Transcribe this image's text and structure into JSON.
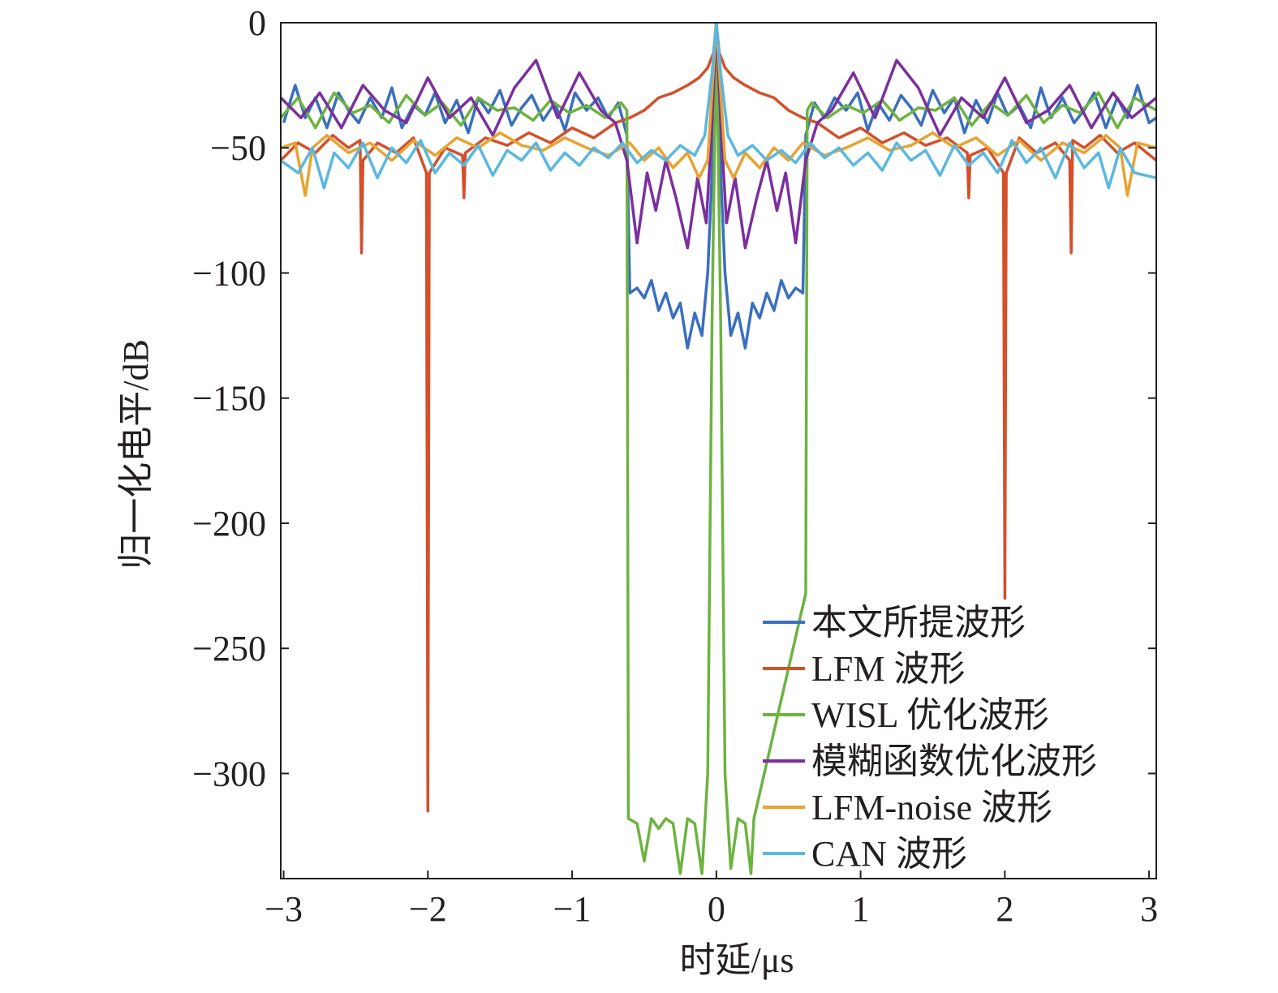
{
  "chart_data": {
    "type": "line",
    "title": "",
    "xlabel": "时延/μs",
    "ylabel": "归一化电平/dB",
    "xlim": [
      -3.02,
      3.05
    ],
    "ylim": [
      -342,
      0
    ],
    "x_ticks": [
      -3,
      -2,
      -1,
      0,
      1,
      2,
      3
    ],
    "x_tick_labels": [
      "−3",
      "−2",
      "−1",
      "0",
      "1",
      "2",
      "3"
    ],
    "y_ticks": [
      0,
      -50,
      -100,
      -150,
      -200,
      -250,
      -300
    ],
    "y_tick_labels": [
      "0",
      "−50",
      "−100",
      "−150",
      "−200",
      "−250",
      "−300"
    ],
    "grid": false,
    "legend_position": "bottom-right",
    "series": [
      {
        "name": "本文所提波形",
        "color": "#3a6fbf",
        "x": [
          -3.0,
          -2.92,
          -2.85,
          -2.78,
          -2.7,
          -2.62,
          -2.55,
          -2.48,
          -2.4,
          -2.32,
          -2.25,
          -2.18,
          -2.1,
          -2.02,
          -1.95,
          -1.88,
          -1.8,
          -1.72,
          -1.65,
          -1.58,
          -1.5,
          -1.42,
          -1.35,
          -1.28,
          -1.2,
          -1.12,
          -1.05,
          -0.98,
          -0.9,
          -0.82,
          -0.75,
          -0.68,
          -0.62,
          -0.6,
          -0.55,
          -0.5,
          -0.45,
          -0.4,
          -0.35,
          -0.3,
          -0.25,
          -0.2,
          -0.15,
          -0.1,
          -0.06,
          -0.03,
          0.0,
          0.03,
          0.06,
          0.1,
          0.15,
          0.2,
          0.25,
          0.3,
          0.35,
          0.4,
          0.45,
          0.5,
          0.55,
          0.6,
          0.62,
          0.68,
          0.75,
          0.82,
          0.9,
          0.98,
          1.05,
          1.12,
          1.2,
          1.28,
          1.35,
          1.42,
          1.5,
          1.58,
          1.65,
          1.72,
          1.8,
          1.88,
          1.95,
          2.02,
          2.1,
          2.18,
          2.25,
          2.32,
          2.4,
          2.48,
          2.55,
          2.62,
          2.7,
          2.78,
          2.85,
          2.92,
          3.0,
          3.05
        ],
        "y": [
          -40,
          -25,
          -38,
          -30,
          -42,
          -28,
          -35,
          -40,
          -30,
          -38,
          -26,
          -42,
          -33,
          -37,
          -28,
          -40,
          -31,
          -44,
          -30,
          -36,
          -27,
          -41,
          -34,
          -29,
          -39,
          -32,
          -43,
          -28,
          -35,
          -30,
          -38,
          -32,
          -45,
          -108,
          -106,
          -110,
          -103,
          -115,
          -108,
          -118,
          -112,
          -130,
          -116,
          -125,
          -100,
          -60,
          0,
          -60,
          -100,
          -125,
          -116,
          -130,
          -112,
          -118,
          -108,
          -115,
          -103,
          -110,
          -106,
          -108,
          -45,
          -32,
          -38,
          -30,
          -35,
          -28,
          -43,
          -32,
          -39,
          -29,
          -34,
          -41,
          -27,
          -36,
          -30,
          -44,
          -31,
          -40,
          -28,
          -37,
          -33,
          -42,
          -26,
          -38,
          -30,
          -40,
          -35,
          -28,
          -42,
          -30,
          -38,
          -25,
          -40,
          -38
        ]
      },
      {
        "name": "LFM 波形",
        "color": "#d4502a",
        "x": [
          -3.02,
          -2.9,
          -2.78,
          -2.66,
          -2.55,
          -2.47,
          -2.46,
          -2.45,
          -2.35,
          -2.22,
          -2.1,
          -2.01,
          -2.0,
          -1.99,
          -1.88,
          -1.76,
          -1.75,
          -1.74,
          -1.6,
          -1.45,
          -1.3,
          -1.15,
          -1.0,
          -0.85,
          -0.7,
          -0.6,
          -0.5,
          -0.4,
          -0.3,
          -0.2,
          -0.12,
          -0.06,
          -0.02,
          0.0,
          0.02,
          0.06,
          0.12,
          0.2,
          0.3,
          0.4,
          0.5,
          0.6,
          0.7,
          0.85,
          1.0,
          1.15,
          1.3,
          1.45,
          1.6,
          1.74,
          1.75,
          1.76,
          1.88,
          1.99,
          2.0,
          2.01,
          2.1,
          2.22,
          2.35,
          2.45,
          2.46,
          2.47,
          2.55,
          2.66,
          2.78,
          2.9,
          3.05
        ],
        "y": [
          -55,
          -48,
          -52,
          -45,
          -50,
          -47,
          -92,
          -55,
          -48,
          -52,
          -46,
          -60,
          -315,
          -60,
          -50,
          -53,
          -70,
          -52,
          -46,
          -49,
          -44,
          -48,
          -42,
          -46,
          -40,
          -38,
          -35,
          -30,
          -28,
          -25,
          -22,
          -18,
          -12,
          0,
          -12,
          -18,
          -22,
          -25,
          -28,
          -30,
          -35,
          -38,
          -40,
          -46,
          -42,
          -48,
          -44,
          -49,
          -46,
          -52,
          -70,
          -53,
          -50,
          -60,
          -230,
          -60,
          -46,
          -52,
          -48,
          -55,
          -92,
          -47,
          -50,
          -45,
          -52,
          -48,
          -55
        ]
      },
      {
        "name": "WISL 优化波形",
        "color": "#6db33f",
        "x": [
          -3.02,
          -2.9,
          -2.78,
          -2.65,
          -2.52,
          -2.4,
          -2.27,
          -2.15,
          -2.02,
          -1.9,
          -1.77,
          -1.65,
          -1.52,
          -1.4,
          -1.27,
          -1.15,
          -1.02,
          -0.9,
          -0.77,
          -0.66,
          -0.62,
          -0.61,
          -0.55,
          -0.5,
          -0.45,
          -0.4,
          -0.35,
          -0.3,
          -0.25,
          -0.2,
          -0.15,
          -0.1,
          -0.06,
          -0.03,
          0.0,
          0.03,
          0.06,
          0.1,
          0.15,
          0.2,
          0.24,
          0.26,
          0.62,
          0.63,
          0.66,
          0.77,
          0.9,
          1.02,
          1.15,
          1.27,
          1.4,
          1.52,
          1.65,
          1.77,
          1.9,
          2.02,
          2.15,
          2.27,
          2.4,
          2.52,
          2.65,
          2.78,
          2.9,
          3.05
        ],
        "y": [
          -38,
          -30,
          -42,
          -28,
          -36,
          -33,
          -40,
          -29,
          -37,
          -32,
          -41,
          -30,
          -35,
          -34,
          -39,
          -31,
          -36,
          -33,
          -38,
          -32,
          -35,
          -318,
          -320,
          -335,
          -318,
          -322,
          -318,
          -320,
          -340,
          -318,
          -320,
          -340,
          -300,
          -120,
          0,
          -120,
          -300,
          -338,
          -318,
          -320,
          -340,
          -318,
          -228,
          -35,
          -32,
          -38,
          -33,
          -36,
          -31,
          -39,
          -34,
          -35,
          -30,
          -41,
          -32,
          -37,
          -29,
          -40,
          -33,
          -36,
          -28,
          -42,
          -30,
          -35
        ]
      },
      {
        "name": "模糊函数优化波形",
        "color": "#7b2f9e",
        "x": [
          -3.02,
          -2.88,
          -2.75,
          -2.6,
          -2.45,
          -2.3,
          -2.15,
          -2.0,
          -1.85,
          -1.7,
          -1.55,
          -1.4,
          -1.25,
          -1.1,
          -0.95,
          -0.8,
          -0.7,
          -0.62,
          -0.55,
          -0.48,
          -0.42,
          -0.35,
          -0.28,
          -0.2,
          -0.13,
          -0.07,
          -0.03,
          0.0,
          0.03,
          0.07,
          0.13,
          0.2,
          0.28,
          0.35,
          0.42,
          0.48,
          0.55,
          0.62,
          0.7,
          0.8,
          0.95,
          1.1,
          1.25,
          1.4,
          1.55,
          1.7,
          1.85,
          2.0,
          2.15,
          2.3,
          2.45,
          2.6,
          2.75,
          2.88,
          3.05
        ],
        "y": [
          -30,
          -38,
          -28,
          -42,
          -25,
          -35,
          -40,
          -22,
          -38,
          -30,
          -45,
          -26,
          -15,
          -38,
          -20,
          -35,
          -40,
          -55,
          -88,
          -60,
          -75,
          -55,
          -70,
          -90,
          -62,
          -80,
          -40,
          0,
          -40,
          -80,
          -62,
          -90,
          -70,
          -55,
          -75,
          -60,
          -88,
          -55,
          -40,
          -35,
          -20,
          -38,
          -15,
          -26,
          -45,
          -30,
          -38,
          -22,
          -40,
          -35,
          -25,
          -42,
          -28,
          -38,
          -30
        ]
      },
      {
        "name": "LFM-noise 波形",
        "color": "#e8a330",
        "x": [
          -3.02,
          -2.92,
          -2.85,
          -2.8,
          -2.7,
          -2.55,
          -2.4,
          -2.25,
          -2.1,
          -1.95,
          -1.8,
          -1.65,
          -1.5,
          -1.35,
          -1.2,
          -1.05,
          -0.9,
          -0.75,
          -0.6,
          -0.5,
          -0.4,
          -0.3,
          -0.2,
          -0.12,
          -0.06,
          0.0,
          0.06,
          0.12,
          0.2,
          0.3,
          0.4,
          0.5,
          0.6,
          0.75,
          0.9,
          1.05,
          1.2,
          1.35,
          1.5,
          1.65,
          1.8,
          1.95,
          2.1,
          2.25,
          2.4,
          2.55,
          2.7,
          2.8,
          2.85,
          2.92,
          3.05
        ],
        "y": [
          -50,
          -48,
          -69,
          -50,
          -45,
          -52,
          -48,
          -55,
          -47,
          -53,
          -46,
          -50,
          -44,
          -49,
          -51,
          -46,
          -50,
          -53,
          -48,
          -55,
          -50,
          -58,
          -52,
          -62,
          -55,
          0,
          -55,
          -62,
          -52,
          -58,
          -50,
          -55,
          -48,
          -53,
          -50,
          -46,
          -51,
          -49,
          -44,
          -50,
          -46,
          -53,
          -47,
          -55,
          -48,
          -52,
          -45,
          -50,
          -69,
          -48,
          -50
        ]
      },
      {
        "name": "CAN 波形",
        "color": "#5ab8e0",
        "x": [
          -3.02,
          -2.9,
          -2.8,
          -2.72,
          -2.65,
          -2.55,
          -2.45,
          -2.35,
          -2.25,
          -2.15,
          -2.05,
          -1.95,
          -1.85,
          -1.75,
          -1.65,
          -1.55,
          -1.45,
          -1.35,
          -1.25,
          -1.15,
          -1.05,
          -0.95,
          -0.85,
          -0.75,
          -0.65,
          -0.55,
          -0.45,
          -0.35,
          -0.25,
          -0.15,
          -0.08,
          -0.03,
          0.0,
          0.03,
          0.08,
          0.15,
          0.25,
          0.35,
          0.45,
          0.55,
          0.65,
          0.75,
          0.85,
          0.95,
          1.05,
          1.15,
          1.25,
          1.35,
          1.45,
          1.55,
          1.65,
          1.75,
          1.85,
          1.95,
          2.05,
          2.15,
          2.25,
          2.35,
          2.45,
          2.55,
          2.65,
          2.72,
          2.8,
          2.9,
          3.05
        ],
        "y": [
          -55,
          -60,
          -50,
          -66,
          -52,
          -58,
          -48,
          -62,
          -50,
          -56,
          -47,
          -60,
          -52,
          -57,
          -49,
          -61,
          -51,
          -55,
          -48,
          -59,
          -52,
          -57,
          -50,
          -54,
          -48,
          -56,
          -51,
          -55,
          -49,
          -53,
          -45,
          -20,
          0,
          -20,
          -45,
          -53,
          -49,
          -55,
          -51,
          -56,
          -48,
          -54,
          -50,
          -57,
          -52,
          -59,
          -48,
          -55,
          -51,
          -61,
          -49,
          -57,
          -52,
          -60,
          -47,
          -56,
          -50,
          -62,
          -48,
          -58,
          -52,
          -66,
          -50,
          -60,
          -62
        ]
      }
    ]
  }
}
